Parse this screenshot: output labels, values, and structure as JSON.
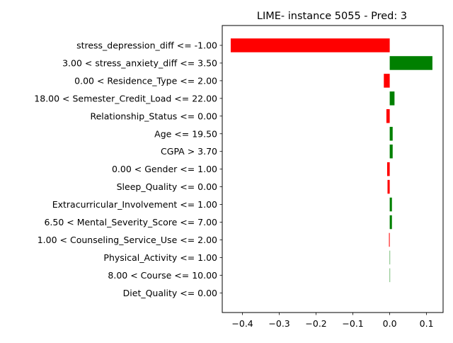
{
  "chart_data": {
    "type": "bar",
    "orientation": "horizontal",
    "title": "LIME- instance 5055 - Pred: 3",
    "xlabel": "",
    "ylabel": "",
    "xlim": [
      -0.455,
      0.145
    ],
    "xticks": [
      -0.4,
      -0.3,
      -0.2,
      -0.1,
      0.0,
      0.1
    ],
    "xtick_labels": [
      "−0.4",
      "−0.3",
      "−0.2",
      "−0.1",
      "0.0",
      "0.1"
    ],
    "grid": false,
    "colors": {
      "positive": "#008000",
      "negative": "#ff0000"
    },
    "categories": [
      "stress_depression_diff <= -1.00",
      "3.00 < stress_anxiety_diff <= 3.50",
      "0.00 < Residence_Type <= 2.00",
      "18.00 < Semester_Credit_Load <= 22.00",
      "Relationship_Status <= 0.00",
      "Age <= 19.50",
      "CGPA > 3.70",
      "0.00 < Gender <= 1.00",
      "Sleep_Quality <= 0.00",
      "Extracurricular_Involvement <= 1.00",
      "6.50 < Mental_Severity_Score <= 7.00",
      "1.00 < Counseling_Service_Use <= 2.00",
      "Physical_Activity <= 1.00",
      "8.00 < Course <= 10.00",
      "Diet_Quality <= 0.00"
    ],
    "values": [
      -0.432,
      0.116,
      -0.016,
      0.013,
      -0.009,
      0.008,
      0.008,
      -0.007,
      -0.006,
      0.006,
      0.006,
      -0.002,
      0.001,
      0.001,
      0.0
    ]
  }
}
